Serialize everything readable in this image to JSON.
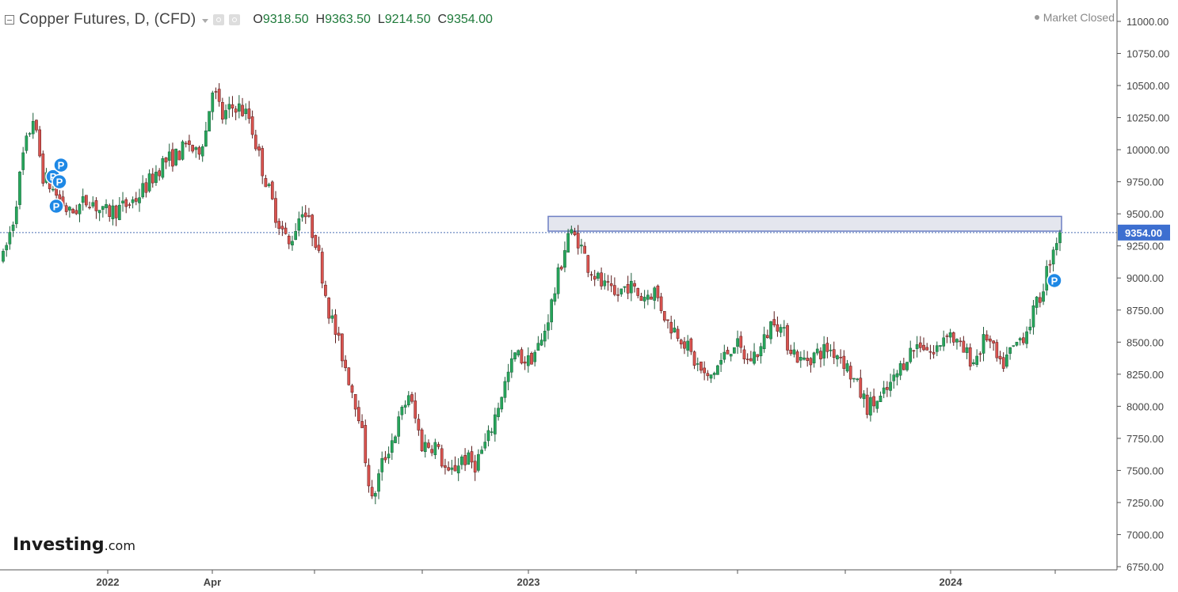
{
  "header": {
    "title": "Copper Futures, D, (CFD)",
    "open_label": "O",
    "open": "9318.50",
    "high_label": "H",
    "high": "9363.50",
    "low_label": "L",
    "low": "9214.50",
    "close_label": "C",
    "close": "9354.00",
    "market_status": "Market Closed"
  },
  "logo": {
    "brand": "Investing",
    "suffix": ".com"
  },
  "colors": {
    "up": "#26a65b",
    "down": "#d9534f",
    "up_edge": "#1b5e3a",
    "down_edge": "#5a1b1b",
    "price_label_bg": "#3d6fd0",
    "zone_fill": "#e4e6ee",
    "zone_stroke": "#6d7fc4",
    "price_line": "#4a6fb5",
    "marker": "#1e88e5"
  },
  "chart_data": {
    "type": "candlestick",
    "title": "Copper Futures, D, (CFD)",
    "current_price": 9354.0,
    "current_price_label": "9354.00",
    "ylim": [
      6750,
      11000
    ],
    "y_ticks": [
      "6750.00",
      "7000.00",
      "7250.00",
      "7500.00",
      "7750.00",
      "8000.00",
      "8250.00",
      "8500.00",
      "8750.00",
      "9000.00",
      "9250.00",
      "9500.00",
      "9750.00",
      "10000.00",
      "10250.00",
      "10500.00",
      "10750.00",
      "11000.00"
    ],
    "x_labels": [
      "2022",
      "Apr",
      "2023",
      "2024"
    ],
    "resistance_zone": {
      "low": 9365,
      "high": 9480
    },
    "markers": [
      {
        "label": "P"
      },
      {
        "label": "P"
      },
      {
        "label": "P"
      },
      {
        "label": "P"
      },
      {
        "label": "P"
      }
    ],
    "series": [
      {
        "name": "Copper Futures",
        "keypoints": [
          [
            0,
            9150
          ],
          [
            3,
            9450
          ],
          [
            6,
            9950
          ],
          [
            9,
            10250
          ],
          [
            12,
            9800
          ],
          [
            16,
            9650
          ],
          [
            20,
            9500
          ],
          [
            26,
            9620
          ],
          [
            30,
            9500
          ],
          [
            36,
            9550
          ],
          [
            40,
            9620
          ],
          [
            44,
            9750
          ],
          [
            48,
            9900
          ],
          [
            52,
            9950
          ],
          [
            56,
            10050
          ],
          [
            58,
            9950
          ],
          [
            61,
            10150
          ],
          [
            63,
            10500
          ],
          [
            66,
            10250
          ],
          [
            70,
            10350
          ],
          [
            74,
            10250
          ],
          [
            78,
            9850
          ],
          [
            82,
            9500
          ],
          [
            86,
            9250
          ],
          [
            90,
            9550
          ],
          [
            94,
            9300
          ],
          [
            98,
            8750
          ],
          [
            102,
            8400
          ],
          [
            107,
            7950
          ],
          [
            111,
            7250
          ],
          [
            114,
            7550
          ],
          [
            118,
            7800
          ],
          [
            122,
            8100
          ],
          [
            126,
            7700
          ],
          [
            130,
            7700
          ],
          [
            134,
            7450
          ],
          [
            138,
            7600
          ],
          [
            142,
            7550
          ],
          [
            146,
            7750
          ],
          [
            150,
            8100
          ],
          [
            154,
            8400
          ],
          [
            158,
            8350
          ],
          [
            162,
            8500
          ],
          [
            166,
            8900
          ],
          [
            170,
            9350
          ],
          [
            173,
            9300
          ],
          [
            176,
            9100
          ],
          [
            180,
            8950
          ],
          [
            184,
            8850
          ],
          [
            188,
            8950
          ],
          [
            192,
            8850
          ],
          [
            196,
            8900
          ],
          [
            200,
            8650
          ],
          [
            204,
            8550
          ],
          [
            208,
            8350
          ],
          [
            212,
            8200
          ],
          [
            216,
            8350
          ],
          [
            220,
            8500
          ],
          [
            224,
            8350
          ],
          [
            228,
            8450
          ],
          [
            232,
            8700
          ],
          [
            236,
            8500
          ],
          [
            240,
            8350
          ],
          [
            244,
            8400
          ],
          [
            248,
            8450
          ],
          [
            252,
            8400
          ],
          [
            256,
            8200
          ],
          [
            260,
            8000
          ],
          [
            264,
            8050
          ],
          [
            268,
            8200
          ],
          [
            272,
            8400
          ],
          [
            276,
            8500
          ],
          [
            280,
            8400
          ],
          [
            284,
            8600
          ],
          [
            288,
            8450
          ],
          [
            292,
            8350
          ],
          [
            296,
            8550
          ],
          [
            300,
            8300
          ],
          [
            304,
            8450
          ],
          [
            308,
            8600
          ],
          [
            312,
            8850
          ],
          [
            316,
            9250
          ],
          [
            318,
            9354
          ]
        ]
      }
    ]
  }
}
